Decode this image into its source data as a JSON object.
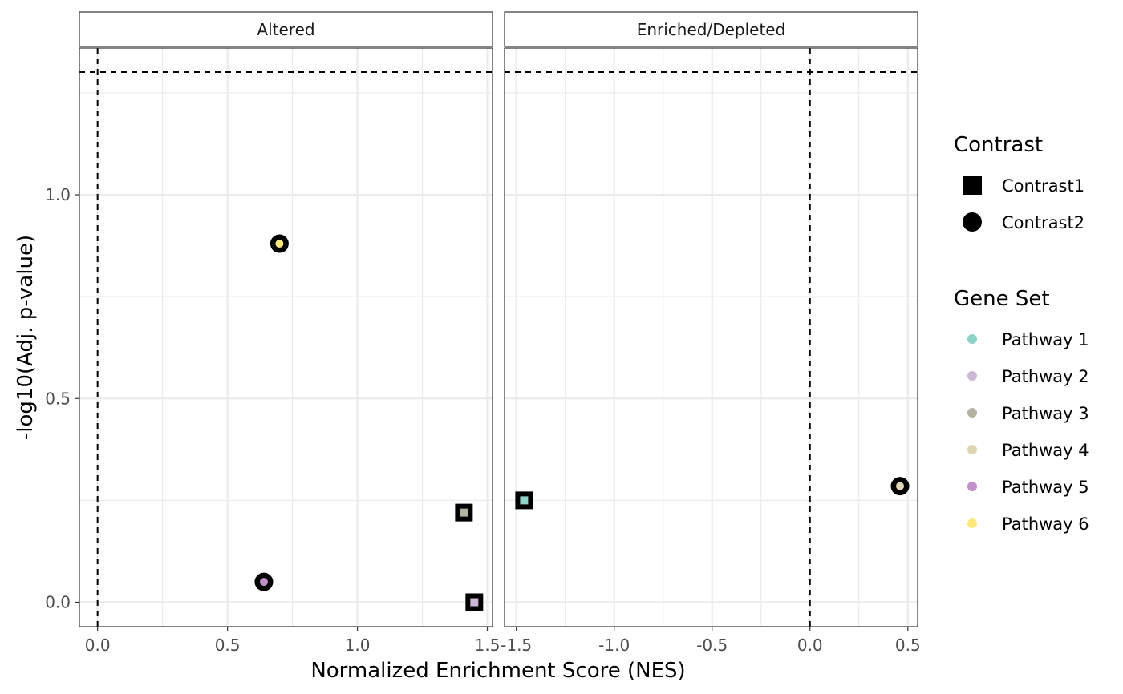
{
  "chart_data": {
    "type": "scatter",
    "xlabel": "Normalized Enrichment Score (NES)",
    "ylabel": "-log10(Adj. p-value)",
    "y_ticks": [
      "0.0",
      "0.5",
      "1.0"
    ],
    "ylim": [
      -0.06,
      1.36
    ],
    "grid": true,
    "legend_placement": "right",
    "threshold": {
      "y": 1.301,
      "x": 0
    },
    "panels": [
      {
        "strip": "Altered",
        "xlim": [
          -0.07,
          1.52
        ],
        "x_ticks": [
          "0.0",
          "0.5",
          "1.0",
          "1.5"
        ],
        "points": [
          {
            "gene_set": "Pathway 6",
            "contrast": "Contrast2",
            "x": 0.7,
            "y": 0.88
          },
          {
            "gene_set": "Pathway 3",
            "contrast": "Contrast1",
            "x": 1.41,
            "y": 0.22
          },
          {
            "gene_set": "Pathway 5",
            "contrast": "Contrast2",
            "x": 0.64,
            "y": 0.05
          },
          {
            "gene_set": "Pathway 2",
            "contrast": "Contrast1",
            "x": 1.45,
            "y": 0.0
          }
        ]
      },
      {
        "strip": "Enriched/Depleted",
        "xlim": [
          -1.56,
          0.55
        ],
        "x_ticks": [
          "-1.5",
          "-1.0",
          "-0.5",
          "0.0",
          "0.5"
        ],
        "points": [
          {
            "gene_set": "Pathway 1",
            "contrast": "Contrast1",
            "x": -1.46,
            "y": 0.25
          },
          {
            "gene_set": "Pathway 4",
            "contrast": "Contrast2",
            "x": 0.46,
            "y": 0.285
          }
        ]
      }
    ],
    "legend": {
      "contrast_title": "Contrast",
      "contrast_items": [
        {
          "label": "Contrast1",
          "shape": "square"
        },
        {
          "label": "Contrast2",
          "shape": "circle"
        }
      ],
      "gene_set_title": "Gene Set",
      "gene_set_items": [
        {
          "label": "Pathway 1",
          "color": "#8dd3c7"
        },
        {
          "label": "Pathway 2",
          "color": "#ccb8d6"
        },
        {
          "label": "Pathway 3",
          "color": "#b3b3a3"
        },
        {
          "label": "Pathway 4",
          "color": "#dfd6b5"
        },
        {
          "label": "Pathway 5",
          "color": "#c28fc9"
        },
        {
          "label": "Pathway 6",
          "color": "#fde87a"
        }
      ]
    }
  }
}
